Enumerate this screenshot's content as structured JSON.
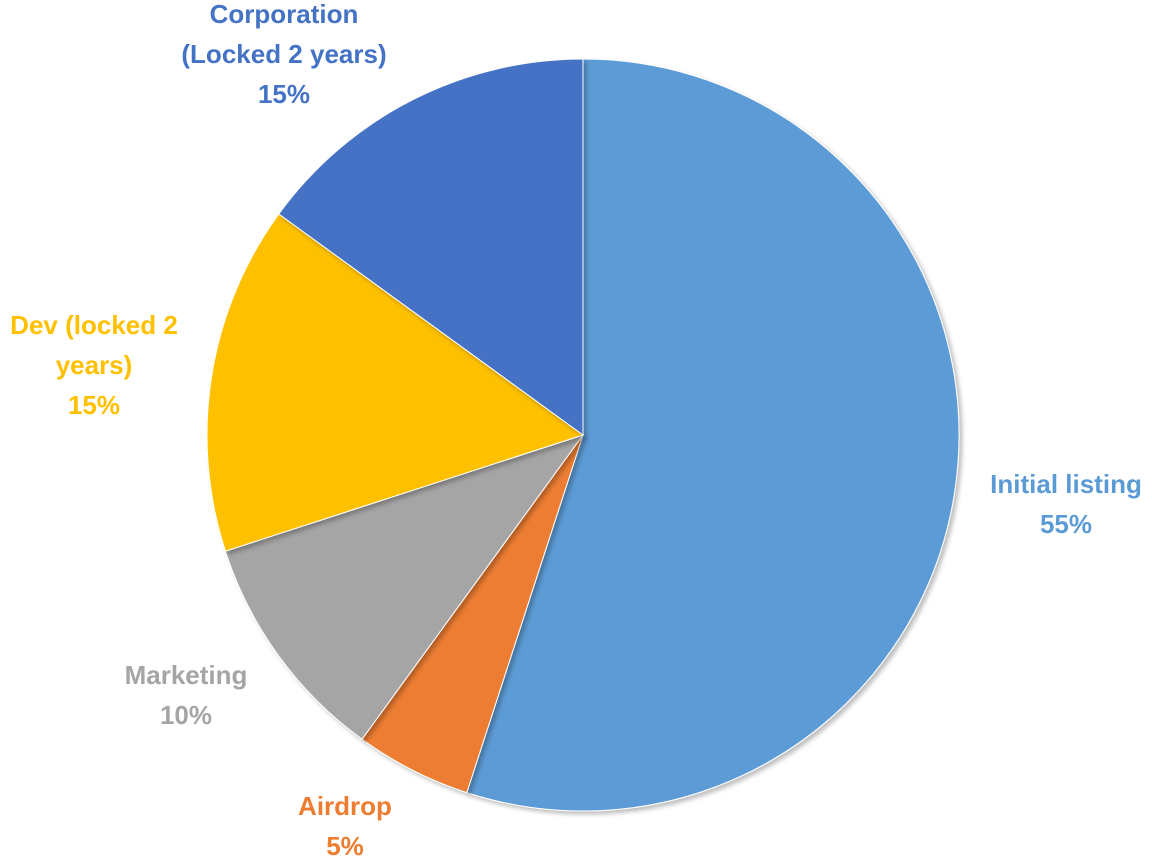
{
  "chart_data": {
    "type": "pie",
    "title": "",
    "slices": [
      {
        "key": "initial_listing",
        "label_lines": [
          "Initial listing"
        ],
        "value": 55,
        "pct_label": "55%",
        "color": "#5B9BD5"
      },
      {
        "key": "airdrop",
        "label_lines": [
          "Airdrop"
        ],
        "value": 5,
        "pct_label": "5%",
        "color": "#ED7D31"
      },
      {
        "key": "marketing",
        "label_lines": [
          "Marketing"
        ],
        "value": 10,
        "pct_label": "10%",
        "color": "#A5A5A5"
      },
      {
        "key": "dev",
        "label_lines": [
          "Dev (locked 2",
          "years)"
        ],
        "value": 15,
        "pct_label": "15%",
        "color": "#FFC000"
      },
      {
        "key": "corporation",
        "label_lines": [
          "Corporation",
          "(Locked 2 years)"
        ],
        "value": 15,
        "pct_label": "15%",
        "color": "#4472C4"
      }
    ]
  }
}
